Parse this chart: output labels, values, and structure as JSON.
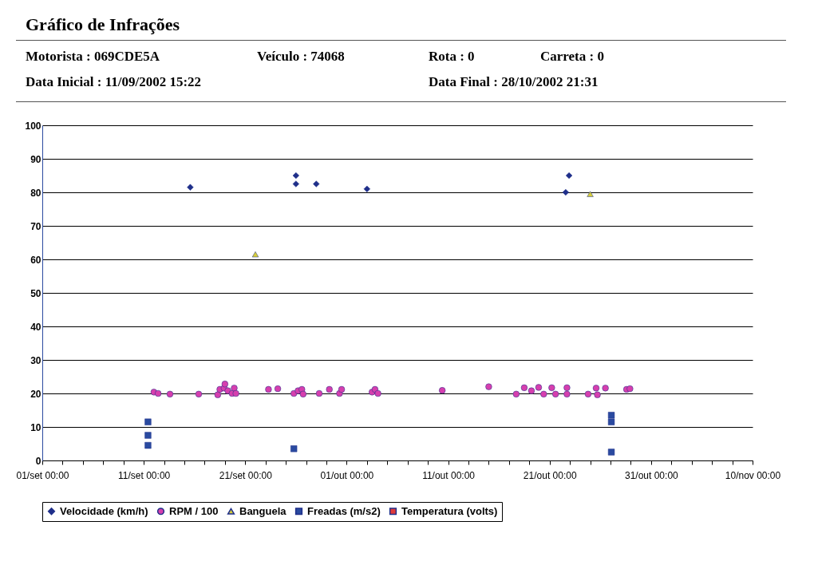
{
  "chart_data": {
    "type": "scatter",
    "title": "Gráfico de Infrações",
    "annotations": [
      "Motorista : 069CDE5A",
      "Veículo : 74068",
      "Rota : 0",
      "Carreta : 0",
      "Data Inicial : 11/09/2002 15:22",
      "Data Final : 28/10/2002 21:31"
    ],
    "xlim": [
      "2002-09-01",
      "2002-11-10"
    ],
    "xticks": [
      {
        "value": "2002-09-01",
        "label": "01/set 00:00"
      },
      {
        "value": "2002-09-03",
        "label": null
      },
      {
        "value": "2002-09-05",
        "label": null
      },
      {
        "value": "2002-09-07",
        "label": null
      },
      {
        "value": "2002-09-09",
        "label": null
      },
      {
        "value": "2002-09-11",
        "label": "11/set 00:00"
      },
      {
        "value": "2002-09-13",
        "label": null
      },
      {
        "value": "2002-09-15",
        "label": null
      },
      {
        "value": "2002-09-17",
        "label": null
      },
      {
        "value": "2002-09-19",
        "label": null
      },
      {
        "value": "2002-09-21",
        "label": "21/set 00:00"
      },
      {
        "value": "2002-09-23",
        "label": null
      },
      {
        "value": "2002-09-25",
        "label": null
      },
      {
        "value": "2002-09-27",
        "label": null
      },
      {
        "value": "2002-09-29",
        "label": null
      },
      {
        "value": "2002-10-01",
        "label": "01/out 00:00"
      },
      {
        "value": "2002-10-03",
        "label": null
      },
      {
        "value": "2002-10-05",
        "label": null
      },
      {
        "value": "2002-10-07",
        "label": null
      },
      {
        "value": "2002-10-09",
        "label": null
      },
      {
        "value": "2002-10-11",
        "label": "11/out 00:00"
      },
      {
        "value": "2002-10-13",
        "label": null
      },
      {
        "value": "2002-10-15",
        "label": null
      },
      {
        "value": "2002-10-17",
        "label": null
      },
      {
        "value": "2002-10-19",
        "label": null
      },
      {
        "value": "2002-10-21",
        "label": "21/out 00:00"
      },
      {
        "value": "2002-10-23",
        "label": null
      },
      {
        "value": "2002-10-25",
        "label": null
      },
      {
        "value": "2002-10-27",
        "label": null
      },
      {
        "value": "2002-10-29",
        "label": null
      },
      {
        "value": "2002-10-31",
        "label": "31/out 00:00"
      },
      {
        "value": "2002-11-02",
        "label": null
      },
      {
        "value": "2002-11-04",
        "label": null
      },
      {
        "value": "2002-11-06",
        "label": null
      },
      {
        "value": "2002-11-08",
        "label": null
      },
      {
        "value": "2002-11-10",
        "label": "10/nov 00:00"
      }
    ],
    "ylim": [
      0,
      100
    ],
    "yticks": [
      0,
      10,
      20,
      30,
      40,
      50,
      60,
      70,
      80,
      90,
      100
    ],
    "grid": "y",
    "legend": "bottom",
    "series": [
      {
        "name": "Velocidade (km/h)",
        "color": "#1f2f8a",
        "marker": "diamond",
        "x": [
          "2002-09-15T14:00",
          "2002-09-26T00:00",
          "2002-09-26T00:00",
          "2002-09-28T00:00",
          "2002-10-03T00:00",
          "2002-10-22T22:00",
          "2002-10-22T14:00"
        ],
        "values": [
          81.5,
          85,
          82.5,
          82.5,
          81,
          85,
          80
        ]
      },
      {
        "name": "RPM / 100",
        "color": "#d63fae",
        "marker": "circle",
        "x": [
          "2002-09-12T00:00",
          "2002-09-12T10:00",
          "2002-09-13T14:00",
          "2002-09-16T10:00",
          "2002-09-18T07:00",
          "2002-09-18T12:00",
          "2002-09-18T22:00",
          "2002-09-19T00:00",
          "2002-09-19T07:00",
          "2002-09-19T17:00",
          "2002-09-19T22:00",
          "2002-09-20T02:00",
          "2002-09-23T07:00",
          "2002-09-24T05:00",
          "2002-09-25T19:00",
          "2002-09-26T05:00",
          "2002-09-26T14:00",
          "2002-09-26T17:00",
          "2002-09-28T07:00",
          "2002-09-29T07:00",
          "2002-09-30T07:00",
          "2002-09-30T12:00",
          "2002-10-03T12:00",
          "2002-10-03T19:00",
          "2002-10-04T02:00",
          "2002-10-10T10:00",
          "2002-10-15T00:00",
          "2002-10-17T17:00",
          "2002-10-18T12:00",
          "2002-10-19T05:00",
          "2002-10-19T22:00",
          "2002-10-20T10:00",
          "2002-10-21T05:00",
          "2002-10-21T14:00",
          "2002-10-22T17:00",
          "2002-10-22T17:00",
          "2002-10-24T19:00",
          "2002-10-25T14:00",
          "2002-10-25T17:00",
          "2002-10-26T12:00",
          "2002-10-28T14:00",
          "2002-10-28T22:00"
        ],
        "values": [
          20.4,
          20,
          19.8,
          19.8,
          19.6,
          21.2,
          21.6,
          22.8,
          20.8,
          20,
          21.6,
          20,
          21.2,
          21.4,
          20,
          20.8,
          21.2,
          19.8,
          20,
          21.2,
          20,
          21.2,
          20.4,
          21.2,
          20,
          20.9,
          22,
          19.8,
          21.7,
          20.8,
          21.8,
          19.8,
          21.7,
          19.8,
          21.7,
          19.8,
          19.8,
          21.6,
          19.6,
          21.6,
          21.2,
          21.4
        ]
      },
      {
        "name": "Banguela",
        "color": "#d8cf3a",
        "marker": "triangle",
        "x": [
          "2002-09-22T00:00",
          "2002-10-25T00:00"
        ],
        "values": [
          61.5,
          79.5
        ]
      },
      {
        "name": "Freadas (m/s2)",
        "color": "#2a4aa0",
        "marker": "square",
        "x": [
          "2002-09-11T10:00",
          "2002-09-11T10:00",
          "2002-09-11T10:00",
          "2002-09-25T19:00",
          "2002-10-27T02:00",
          "2002-10-27T02:00",
          "2002-10-27T02:00"
        ],
        "values": [
          11.5,
          7.5,
          4.5,
          3.5,
          13.5,
          11.5,
          2.5
        ]
      },
      {
        "name": "Temperatura (volts)",
        "color": "#e03a3a",
        "marker": "square"
      }
    ]
  }
}
